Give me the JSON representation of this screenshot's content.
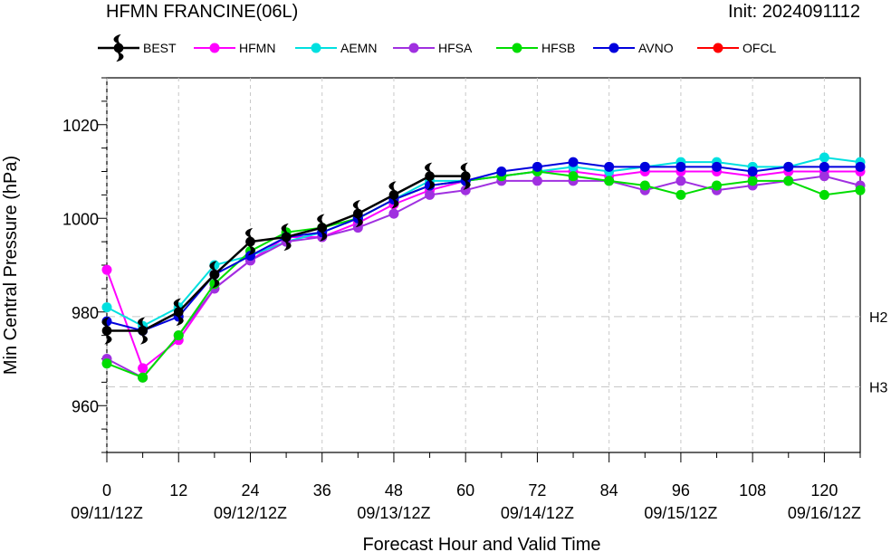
{
  "chart_data": {
    "type": "line",
    "title": "HFMN FRANCINE(06L)",
    "subtitle": "Init: 2024091112",
    "xlabel": "Forecast Hour and Valid Time",
    "ylabel": "Min Central Pressure (hPa)",
    "xlim": [
      0,
      126
    ],
    "ylim": [
      950,
      1030
    ],
    "x_ticks": [
      0,
      12,
      24,
      36,
      48,
      60,
      72,
      84,
      96,
      108,
      120
    ],
    "x_tick_labels": [
      "0",
      "12",
      "24",
      "36",
      "48",
      "60",
      "72",
      "84",
      "96",
      "108",
      "120"
    ],
    "date_labels": [
      {
        "x": 0,
        "label": "09/11/12Z"
      },
      {
        "x": 24,
        "label": "09/12/12Z"
      },
      {
        "x": 48,
        "label": "09/13/12Z"
      },
      {
        "x": 72,
        "label": "09/14/12Z"
      },
      {
        "x": 96,
        "label": "09/15/12Z"
      },
      {
        "x": 120,
        "label": "09/16/12Z"
      }
    ],
    "y_ticks": [
      960,
      980,
      1000,
      1020
    ],
    "y_tick_labels": [
      "960",
      "980",
      "1000",
      "1020"
    ],
    "reference_lines": [
      {
        "y": 979,
        "label": "H2"
      },
      {
        "y": 964,
        "label": "H3"
      }
    ],
    "grid": true,
    "legend_position": "top",
    "series": [
      {
        "name": "HFMN",
        "color": "#ff00ff",
        "marker": "circle",
        "x": [
          0,
          6,
          12,
          18,
          24,
          30,
          36,
          42,
          48,
          54,
          60,
          66,
          72,
          78,
          84,
          90,
          96,
          102,
          108,
          114,
          120,
          126
        ],
        "y": [
          989,
          968,
          974,
          985,
          991,
          996,
          996,
          999,
          1003,
          1006,
          1008,
          1009,
          1010,
          1010,
          1009,
          1010,
          1010,
          1010,
          1009,
          1010,
          1010,
          1010
        ]
      },
      {
        "name": "AEMN",
        "color": "#00e0e0",
        "marker": "circle",
        "x": [
          0,
          6,
          12,
          18,
          24,
          30,
          36,
          42,
          48,
          54,
          60,
          66,
          72,
          78,
          84,
          90,
          96,
          102,
          108,
          114,
          120,
          126
        ],
        "y": [
          981,
          977,
          981,
          990,
          992,
          995,
          997,
          1000,
          1004,
          1008,
          1008,
          1009,
          1010,
          1011,
          1010,
          1011,
          1012,
          1012,
          1011,
          1011,
          1013,
          1012
        ]
      },
      {
        "name": "HFSA",
        "color": "#a030e0",
        "marker": "circle",
        "x": [
          0,
          6,
          12,
          18,
          24,
          30,
          36,
          42,
          48,
          54,
          60,
          66,
          72,
          78,
          84,
          90,
          96,
          102,
          108,
          114,
          120,
          126
        ],
        "y": [
          970,
          966,
          975,
          985,
          991,
          995,
          996,
          998,
          1001,
          1005,
          1006,
          1008,
          1008,
          1008,
          1008,
          1006,
          1008,
          1006,
          1007,
          1008,
          1009,
          1007
        ]
      },
      {
        "name": "HFSB",
        "color": "#00dd00",
        "marker": "circle",
        "x": [
          0,
          6,
          12,
          18,
          24,
          30,
          36,
          42,
          48,
          54,
          60,
          66,
          72,
          78,
          84,
          90,
          96,
          102,
          108,
          114,
          120,
          126
        ],
        "y": [
          969,
          966,
          975,
          986,
          993,
          997,
          998,
          1000,
          1004,
          1007,
          1008,
          1009,
          1010,
          1009,
          1008,
          1007,
          1005,
          1007,
          1008,
          1008,
          1005,
          1006
        ]
      },
      {
        "name": "AVNO",
        "color": "#0000dd",
        "marker": "circle",
        "x": [
          0,
          6,
          12,
          18,
          24,
          30,
          36,
          42,
          48,
          54,
          60,
          66,
          72,
          78,
          84,
          90,
          96,
          102,
          108,
          114,
          120,
          126
        ],
        "y": [
          978,
          976,
          979,
          988,
          992,
          996,
          997,
          1000,
          1004,
          1007,
          1008,
          1010,
          1011,
          1012,
          1011,
          1011,
          1011,
          1011,
          1010,
          1011,
          1011,
          1011
        ]
      },
      {
        "name": "OFCL",
        "color": "#ff0000",
        "marker": "circle",
        "x": [],
        "y": []
      },
      {
        "name": "BEST",
        "color": "#000000",
        "marker": "hurricane-symbol",
        "x": [
          0,
          6,
          12,
          18,
          24,
          30,
          36,
          42,
          48,
          54,
          60
        ],
        "y": [
          976,
          976,
          980,
          988,
          995,
          996,
          998,
          1001,
          1005,
          1009,
          1009
        ]
      }
    ],
    "legend_order": [
      "BEST",
      "HFMN",
      "AEMN",
      "HFSA",
      "HFSB",
      "AVNO",
      "OFCL"
    ]
  }
}
